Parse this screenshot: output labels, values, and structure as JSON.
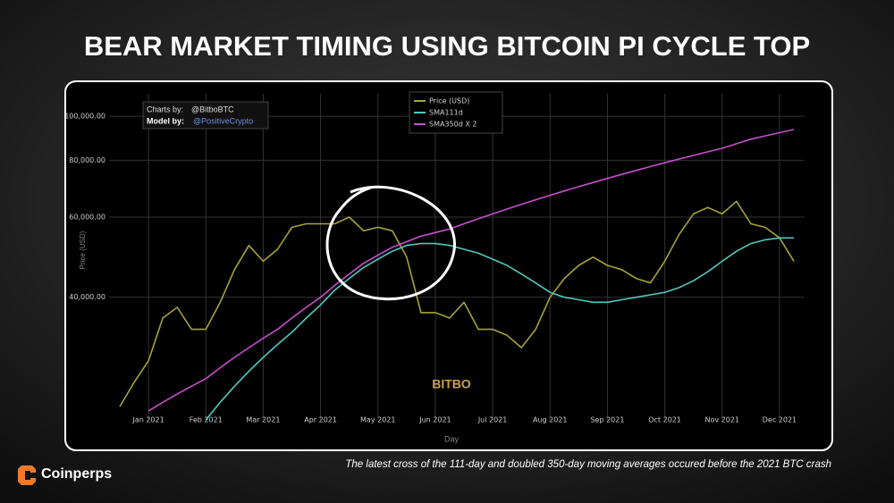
{
  "title": "BEAR MARKET TIMING USING BITCOIN PI CYCLE TOP",
  "brand": "Coinperps",
  "caption": "The latest cross of the 111-day and doubled 350-day moving averages occured before the 2021 BTC crash",
  "chart_data": {
    "type": "line",
    "watermark": "BITBO",
    "credit_chart_label": "Charts by:",
    "credit_chart": "@BitboBTC",
    "credit_model_label": "Model by:",
    "credit_model": "@PositiveCrypto",
    "x_label": "Day",
    "y_label": "Price (USD)",
    "ylog": true,
    "grid": true,
    "legend": "top-center",
    "ylim": [
      21500,
      112000
    ],
    "yticks": [
      {
        "value": 40000,
        "label": "40,000.00"
      },
      {
        "value": 60000,
        "label": "60,000.00"
      },
      {
        "value": 80000,
        "label": "80,000.00"
      },
      {
        "value": 100000,
        "label": "100,000.00"
      }
    ],
    "x": [
      null,
      null,
      "Jan 2021",
      null,
      null,
      null,
      "Feb 2021",
      null,
      null,
      null,
      "Mar 2021",
      null,
      null,
      null,
      "Apr 2021",
      null,
      null,
      null,
      "May 2021",
      null,
      null,
      null,
      "Jun 2021",
      null,
      null,
      null,
      "Jul 2021",
      null,
      null,
      null,
      "Aug 2021",
      null,
      null,
      null,
      "Sep 2021",
      null,
      null,
      null,
      "Oct 2021",
      null,
      null,
      null,
      "Nov 2021",
      null,
      null,
      null,
      "Dec 2021",
      null
    ],
    "series": [
      {
        "name": "Price (USD)",
        "color": "#a8a23a",
        "values": [
          23000,
          26000,
          29000,
          36000,
          38000,
          34000,
          34000,
          39000,
          46000,
          52000,
          48000,
          51000,
          57000,
          58000,
          58000,
          58000,
          60000,
          56000,
          57000,
          56000,
          49000,
          37000,
          37000,
          36000,
          39000,
          34000,
          34000,
          33000,
          31000,
          34000,
          40000,
          44000,
          47000,
          49000,
          47000,
          46000,
          44000,
          43000,
          48000,
          55000,
          61000,
          63000,
          61000,
          65000,
          58000,
          57000,
          54000,
          48000
        ]
      },
      {
        "name": "SMA111d",
        "color": "#4fc9c0",
        "values": [
          null,
          null,
          null,
          null,
          null,
          null,
          21500,
          23500,
          25500,
          27500,
          29500,
          31500,
          33500,
          36000,
          38500,
          41500,
          44000,
          46500,
          48500,
          50500,
          52000,
          52500,
          52500,
          52000,
          51000,
          50000,
          48500,
          47000,
          45000,
          43000,
          41000,
          40000,
          39500,
          39000,
          39000,
          39500,
          40000,
          40500,
          41000,
          42000,
          43500,
          45500,
          48000,
          50500,
          52500,
          53500,
          54000,
          54000
        ]
      },
      {
        "name": "SMA350d X 2",
        "color": "#c84fd0",
        "values": [
          null,
          null,
          22500,
          23500,
          24500,
          25500,
          26500,
          28000,
          29500,
          31000,
          32500,
          34000,
          36000,
          38000,
          40000,
          42500,
          45000,
          47500,
          49500,
          51500,
          53000,
          54500,
          55500,
          56500,
          58000,
          59500,
          61000,
          62500,
          64000,
          65500,
          67000,
          68500,
          70000,
          71500,
          73000,
          74500,
          76000,
          77500,
          79000,
          80500,
          82000,
          83500,
          85000,
          87000,
          89000,
          90500,
          92000,
          93500
        ]
      }
    ]
  }
}
